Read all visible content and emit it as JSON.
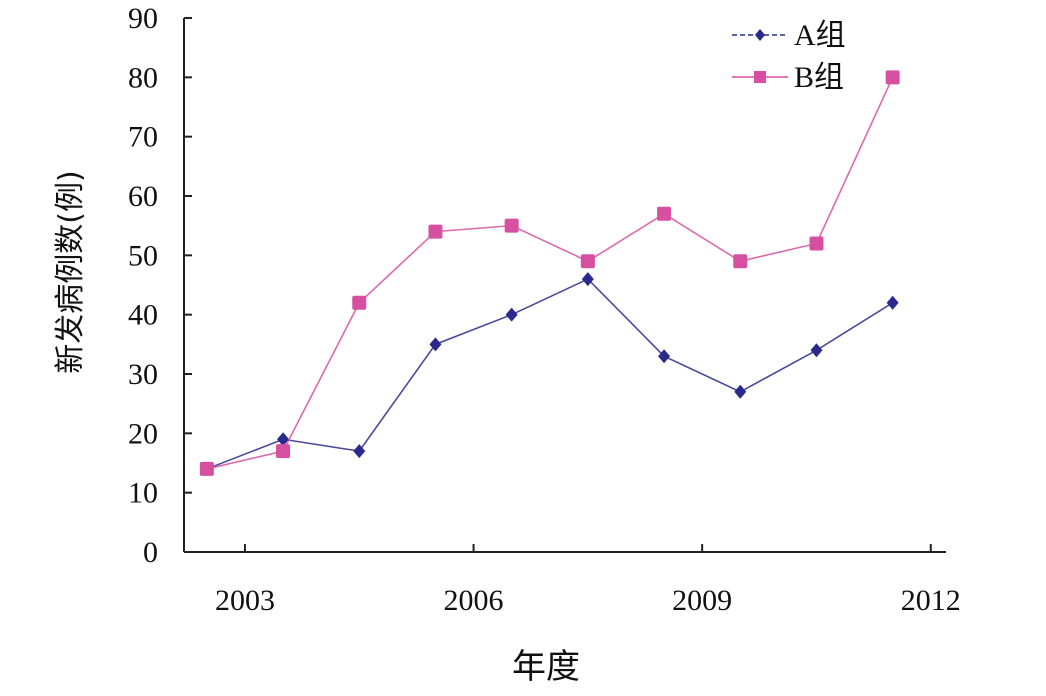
{
  "chart_data": {
    "type": "line",
    "xlabel": "年度",
    "ylabel": "新发病例数(例)",
    "x": [
      2002.5,
      2003.5,
      2004.5,
      2005.5,
      2006.5,
      2007.5,
      2008.5,
      2009.5,
      2010.5,
      2011.5
    ],
    "x_ticks": [
      "2003",
      "2006",
      "2009",
      "2012"
    ],
    "y_ticks": [
      "0",
      "10",
      "20",
      "30",
      "40",
      "50",
      "60",
      "70",
      "80",
      "90"
    ],
    "ylim": [
      0,
      90
    ],
    "series": [
      {
        "name": "A组",
        "color": "#2a2a8c",
        "marker": "diamond",
        "values": [
          14,
          19,
          17,
          35,
          40,
          46,
          33,
          27,
          34,
          42
        ]
      },
      {
        "name": "B组",
        "color": "#d64fa0",
        "marker": "square",
        "values": [
          14,
          17,
          42,
          54,
          55,
          49,
          57,
          49,
          52,
          80
        ]
      }
    ],
    "legend_position": "top-right",
    "grid": false
  }
}
